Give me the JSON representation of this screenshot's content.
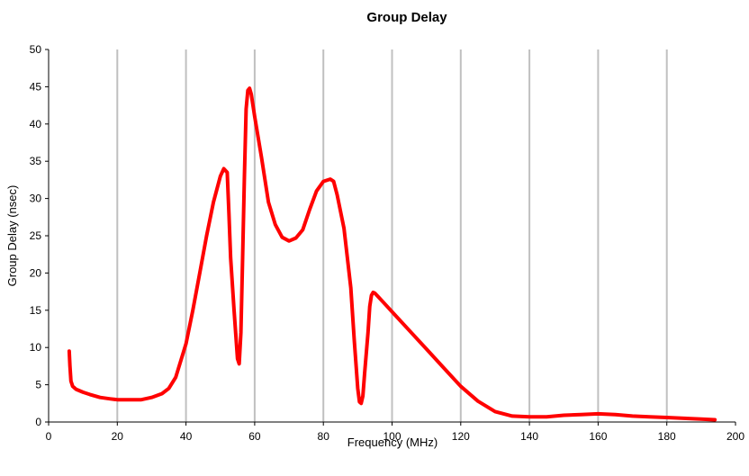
{
  "chart_data": {
    "type": "line",
    "title": "Group Delay",
    "xlabel": "Frequency (MHz)",
    "ylabel": "Group Delay (nsec)",
    "xlim": [
      0,
      200
    ],
    "ylim": [
      0,
      50
    ],
    "xticks": [
      0,
      20,
      40,
      60,
      80,
      100,
      120,
      140,
      160,
      180,
      200
    ],
    "yticks": [
      0,
      5,
      10,
      15,
      20,
      25,
      30,
      35,
      40,
      45,
      50
    ],
    "grid": "vertical",
    "legend": "none",
    "colors": {
      "line": "#ff0000",
      "grid": "#c0c0c0",
      "axis": "#000000"
    },
    "series": [
      {
        "x": [
          6,
          6.2,
          6.5,
          7,
          8,
          10,
          12,
          15,
          18,
          20,
          25,
          27,
          30,
          33,
          35,
          37,
          40,
          42,
          44,
          46,
          48,
          50,
          51,
          52,
          52.5,
          53,
          54,
          55,
          55.5,
          56,
          56.5,
          57,
          57.5,
          58,
          58.5,
          59,
          60,
          62,
          64,
          66,
          68,
          70,
          72,
          74,
          76,
          78,
          80,
          82,
          83,
          84,
          86,
          88,
          89,
          90,
          90.5,
          91,
          91.5,
          92,
          93,
          93.5,
          94,
          94.5,
          95,
          96,
          98,
          100,
          105,
          110,
          115,
          120,
          125,
          130,
          135,
          140,
          145,
          150,
          155,
          160,
          165,
          170,
          175,
          180,
          185,
          190,
          194
        ],
        "y": [
          9.5,
          7.5,
          5.5,
          4.8,
          4.4,
          4.0,
          3.7,
          3.3,
          3.1,
          3.0,
          3.0,
          3.0,
          3.3,
          3.8,
          4.5,
          6.0,
          10.5,
          15.0,
          20.0,
          25.0,
          29.5,
          33.0,
          34.0,
          33.5,
          28.0,
          22.0,
          15.0,
          8.5,
          7.8,
          12.0,
          22.0,
          33.0,
          42.0,
          44.5,
          44.8,
          44.0,
          41.0,
          35.5,
          29.5,
          26.5,
          24.8,
          24.3,
          24.7,
          25.8,
          28.5,
          31.0,
          32.3,
          32.6,
          32.3,
          30.5,
          26.0,
          18.0,
          11.0,
          4.5,
          2.7,
          2.5,
          3.5,
          6.5,
          12.0,
          15.5,
          17.0,
          17.4,
          17.3,
          16.8,
          15.8,
          14.8,
          12.3,
          9.8,
          7.3,
          4.8,
          2.8,
          1.4,
          0.8,
          0.7,
          0.7,
          0.9,
          1.0,
          1.1,
          1.0,
          0.8,
          0.7,
          0.6,
          0.5,
          0.4,
          0.3
        ]
      }
    ]
  }
}
